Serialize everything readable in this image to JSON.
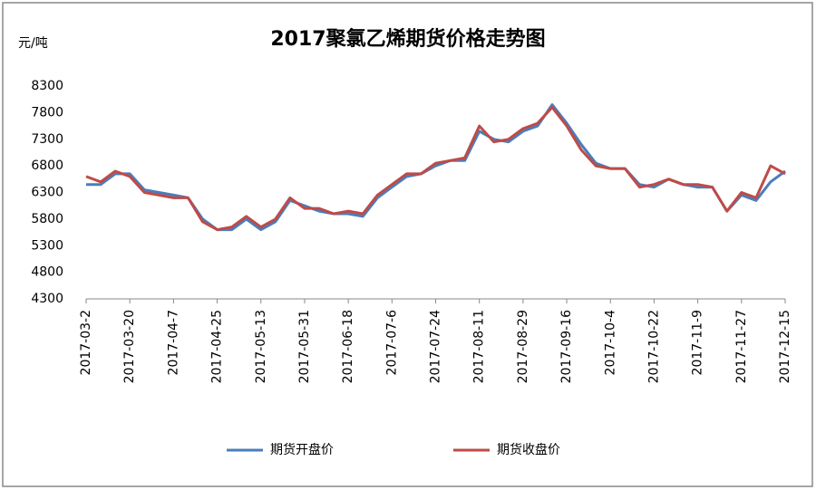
{
  "chart_data": {
    "type": "line",
    "title": "2017聚氯乙烯期货价格走势图",
    "y_label": "元/吨",
    "x": [
      "2017-03-02",
      "2017-03-08",
      "2017-03-14",
      "2017-03-20",
      "2017-03-26",
      "2017-04-01",
      "2017-04-07",
      "2017-04-13",
      "2017-04-19",
      "2017-04-25",
      "2017-05-01",
      "2017-05-07",
      "2017-05-13",
      "2017-05-19",
      "2017-05-25",
      "2017-05-31",
      "2017-06-06",
      "2017-06-12",
      "2017-06-18",
      "2017-06-24",
      "2017-06-30",
      "2017-07-06",
      "2017-07-12",
      "2017-07-18",
      "2017-07-24",
      "2017-07-30",
      "2017-08-05",
      "2017-08-11",
      "2017-08-17",
      "2017-08-23",
      "2017-08-29",
      "2017-09-04",
      "2017-09-10",
      "2017-09-16",
      "2017-09-22",
      "2017-09-28",
      "2017-10-04",
      "2017-10-10",
      "2017-10-16",
      "2017-10-22",
      "2017-10-28",
      "2017-11-03",
      "2017-11-09",
      "2017-11-15",
      "2017-11-21",
      "2017-11-27",
      "2017-12-03",
      "2017-12-09",
      "2017-12-15"
    ],
    "series": [
      {
        "name": "期货开盘价",
        "color": "#4a7ebb",
        "values": [
          6450,
          6450,
          6650,
          6650,
          6350,
          6300,
          6250,
          6200,
          5800,
          5600,
          5600,
          5800,
          5600,
          5750,
          6150,
          6050,
          5950,
          5900,
          5900,
          5850,
          6200,
          6400,
          6600,
          6650,
          6800,
          6900,
          6900,
          7450,
          7300,
          7250,
          7450,
          7550,
          7950,
          7600,
          7200,
          6850,
          6750,
          6750,
          6450,
          6400,
          6550,
          6450,
          6400,
          6400,
          5950,
          6250,
          6150,
          6500,
          6700
        ]
      },
      {
        "name": "期货收盘价",
        "color": "#be4b48",
        "values": [
          6600,
          6500,
          6700,
          6600,
          6300,
          6250,
          6200,
          6200,
          5750,
          5600,
          5650,
          5850,
          5650,
          5800,
          6200,
          6000,
          6000,
          5900,
          5950,
          5900,
          6250,
          6450,
          6650,
          6650,
          6850,
          6900,
          6950,
          7550,
          7250,
          7300,
          7500,
          7600,
          7900,
          7550,
          7100,
          6800,
          6750,
          6750,
          6400,
          6450,
          6550,
          6450,
          6450,
          6400,
          5950,
          6300,
          6200,
          6800,
          6650
        ]
      }
    ],
    "xticks": [
      {
        "value": "2017-03-02",
        "label": "2017-03-2"
      },
      "2017-03-20",
      {
        "value": "2017-04-07",
        "label": "2017-04-7"
      },
      "2017-04-25",
      "2017-05-13",
      "2017-05-31",
      "2017-06-18",
      {
        "value": "2017-07-06",
        "label": "2017-07-6"
      },
      "2017-07-24",
      "2017-08-11",
      "2017-08-29",
      "2017-09-16",
      {
        "value": "2017-10-04",
        "label": "2017-10-4"
      },
      "2017-10-22",
      {
        "value": "2017-11-09",
        "label": "2017-11-9"
      },
      "2017-11-27",
      "2017-12-15"
    ],
    "xlim": [
      "2017-03-02",
      "2017-12-15"
    ],
    "ylim": [
      4300,
      8300
    ],
    "yticks": [
      4300,
      4800,
      5300,
      5800,
      6300,
      6800,
      7300,
      7800,
      8300
    ],
    "legend": "bottom"
  }
}
